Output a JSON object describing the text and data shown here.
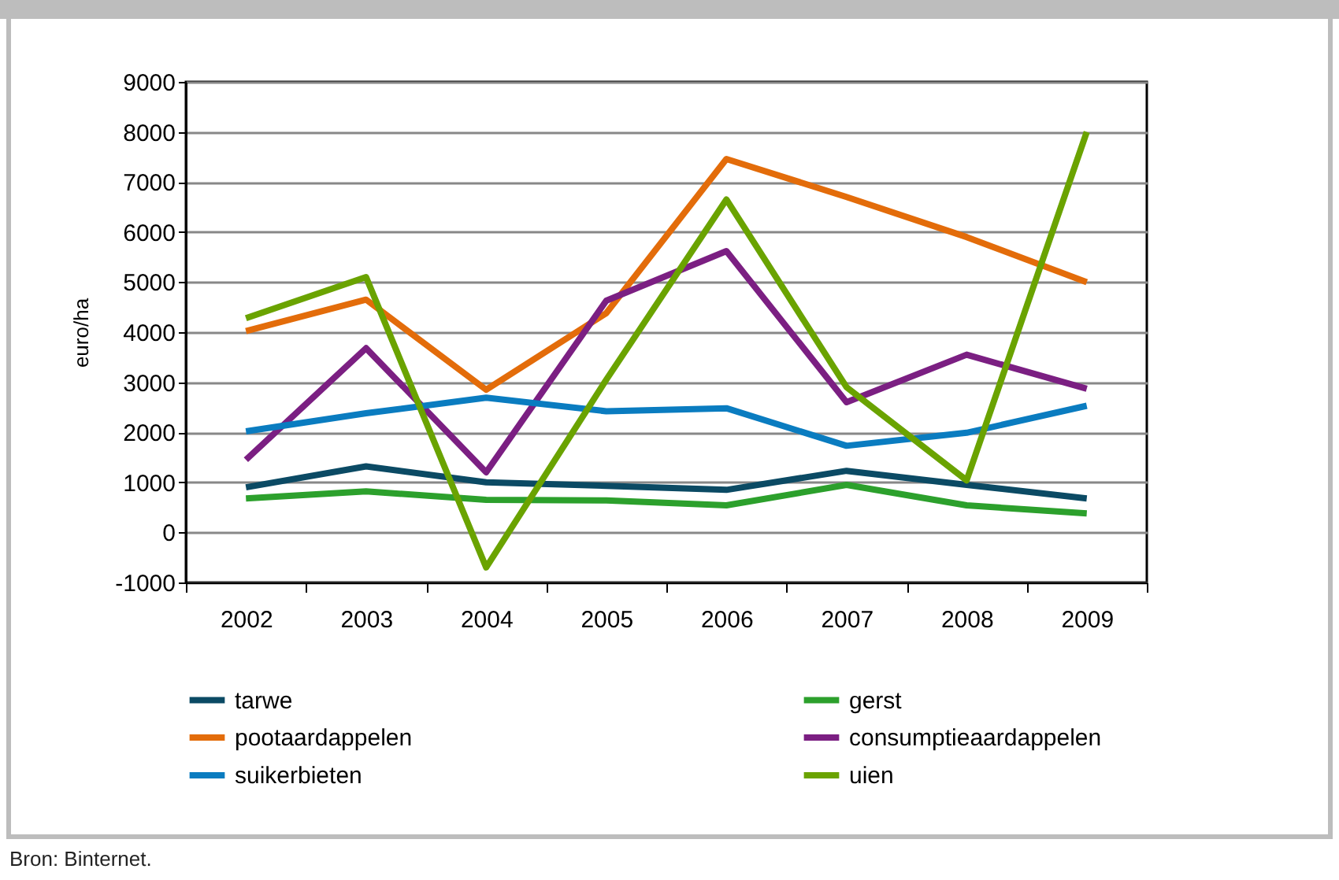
{
  "chart_data": {
    "type": "line",
    "ylabel": "euro/ha",
    "categories": [
      "2002",
      "2003",
      "2004",
      "2005",
      "2006",
      "2007",
      "2008",
      "2009"
    ],
    "series": [
      {
        "name": "tarwe",
        "color": "#0b4a64",
        "values": [
          900,
          1320,
          1000,
          930,
          850,
          1230,
          950,
          680
        ]
      },
      {
        "name": "gerst",
        "color": "#2ca02c",
        "values": [
          680,
          820,
          650,
          640,
          540,
          950,
          540,
          380
        ]
      },
      {
        "name": "pootaardappelen",
        "color": "#e36c0a",
        "values": [
          4020,
          4650,
          2850,
          4380,
          7460,
          6700,
          5900,
          5000
        ]
      },
      {
        "name": "consumptieaardappelen",
        "color": "#7b1f82",
        "values": [
          1450,
          3680,
          1200,
          4630,
          5620,
          2600,
          3550,
          2870
        ]
      },
      {
        "name": "suikerbieten",
        "color": "#0a7cc0",
        "values": [
          2020,
          2380,
          2690,
          2420,
          2480,
          1730,
          1990,
          2530
        ]
      },
      {
        "name": "uien",
        "color": "#6aa300",
        "values": [
          4280,
          5100,
          -700,
          3050,
          6650,
          2900,
          1040,
          8000
        ]
      }
    ],
    "ylim": [
      -1000,
      9000
    ],
    "yticks": [
      -1000,
      0,
      1000,
      2000,
      3000,
      4000,
      5000,
      6000,
      7000,
      8000,
      9000
    ],
    "grid": "y",
    "legend": "bottom",
    "line_style": "solid",
    "annotations": [
      "Bron: Binternet."
    ]
  }
}
